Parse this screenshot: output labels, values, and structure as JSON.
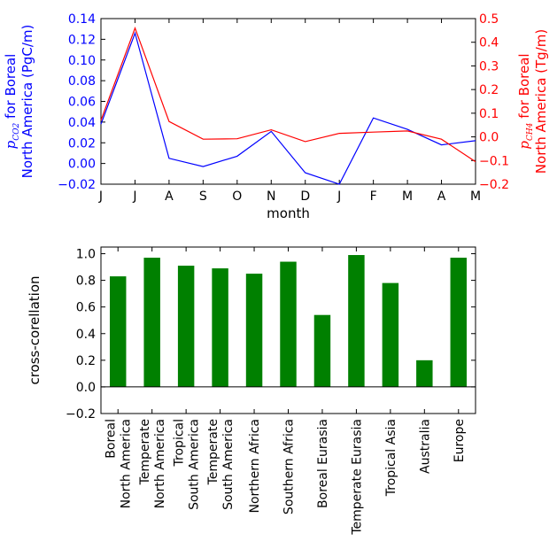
{
  "chart_data": [
    {
      "type": "line",
      "xlabel": "month",
      "categories": [
        "J",
        "J",
        "A",
        "S",
        "O",
        "N",
        "D",
        "J",
        "F",
        "M",
        "A",
        "M"
      ],
      "left_axis": {
        "label_parts": [
          "p",
          "CO2",
          " for Boreal",
          "North America (PgC/m)"
        ],
        "color": "#0000ff",
        "ylim": [
          -0.02,
          0.14
        ],
        "ticks": [
          "−0.02",
          "0.00",
          "0.02",
          "0.04",
          "0.06",
          "0.08",
          "0.10",
          "0.12",
          "0.14"
        ],
        "tick_values": [
          -0.02,
          0.0,
          0.02,
          0.04,
          0.06,
          0.08,
          0.1,
          0.12,
          0.14
        ]
      },
      "right_axis": {
        "label_parts": [
          "p",
          "CH4",
          " for Boreal",
          "North America (Tg/m)"
        ],
        "color": "#ff0000",
        "ylim": [
          -0.2,
          0.5
        ],
        "ticks": [
          "−0.2",
          "−0.1",
          "0.0",
          "0.1",
          "0.2",
          "0.3",
          "0.4",
          "0.5"
        ],
        "tick_values": [
          -0.2,
          -0.1,
          0.0,
          0.1,
          0.2,
          0.3,
          0.4,
          0.5
        ]
      },
      "series": [
        {
          "axis": "left",
          "color": "#0000ff",
          "values": [
            0.038,
            0.126,
            0.005,
            -0.003,
            0.007,
            0.031,
            -0.009,
            -0.02,
            0.044,
            0.033,
            0.018,
            0.022
          ]
        },
        {
          "axis": "right",
          "color": "#ff0000",
          "values": [
            0.07,
            0.46,
            0.065,
            -0.01,
            -0.008,
            0.03,
            -0.02,
            0.015,
            0.02,
            0.025,
            -0.01,
            -0.105
          ]
        }
      ]
    },
    {
      "type": "bar",
      "ylabel": "cross-corellation",
      "ylim": [
        -0.2,
        1.05
      ],
      "ticks": [
        "−0.2",
        "0.0",
        "0.2",
        "0.4",
        "0.6",
        "0.8",
        "1.0"
      ],
      "tick_values": [
        -0.2,
        0.0,
        0.2,
        0.4,
        0.6,
        0.8,
        1.0
      ],
      "bar_color": "#008000",
      "categories": [
        [
          "Boreal",
          "North America"
        ],
        [
          "Temperate",
          "North America"
        ],
        [
          "Tropical",
          "South America"
        ],
        [
          "Temperate",
          "South America"
        ],
        [
          "Northern Africa"
        ],
        [
          "Southern Africa"
        ],
        [
          "Boreal Eurasia"
        ],
        [
          "Temperate Eurasia"
        ],
        [
          "Tropical Asia"
        ],
        [
          "Australia"
        ],
        [
          "Europe"
        ]
      ],
      "values": [
        0.83,
        0.97,
        0.91,
        0.89,
        0.85,
        0.94,
        0.54,
        0.99,
        0.78,
        0.2,
        0.97
      ]
    }
  ]
}
